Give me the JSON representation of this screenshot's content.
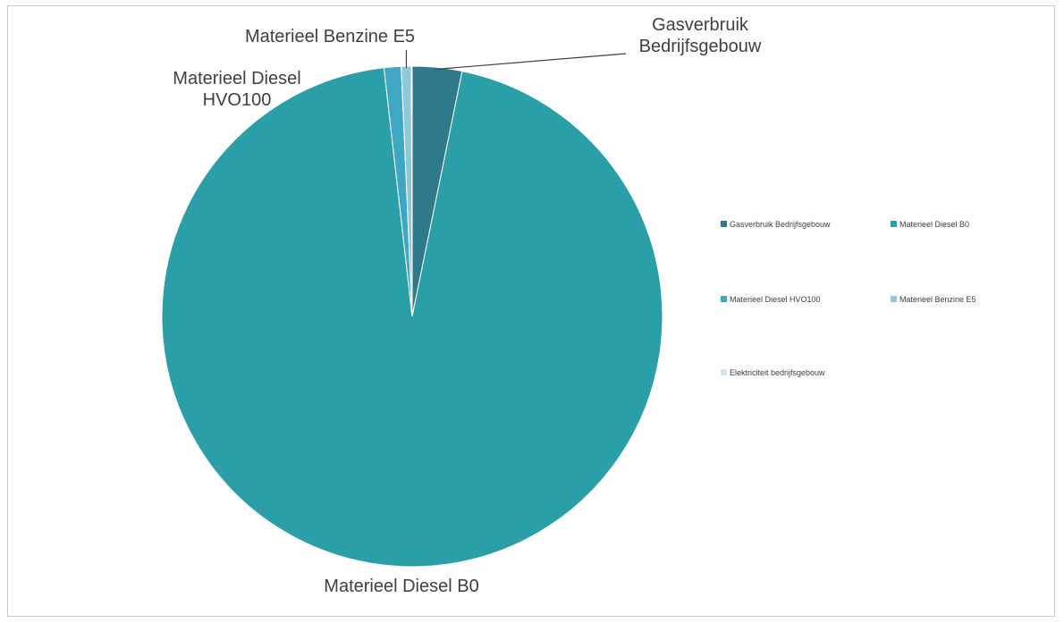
{
  "chart_data": {
    "type": "pie",
    "title": "",
    "start_angle_deg": 0,
    "direction": "clockwise",
    "slices": [
      {
        "name": "Gasverbruik Bedrijfsgebouw",
        "label_lines": [
          "Gasverbruik",
          "Bedrijfsgebouw"
        ],
        "value": 3.2,
        "color": "#2e7a8c"
      },
      {
        "name": "Materieel Diesel B0",
        "label_lines": [
          "Materieel Diesel B0"
        ],
        "value": 95.0,
        "color": "#2b9fa8"
      },
      {
        "name": "Materieel Diesel HVO100",
        "label_lines": [
          "Materieel Diesel",
          "HVO100"
        ],
        "value": 1.1,
        "color": "#3fa7c3"
      },
      {
        "name": "Materieel Benzine E5",
        "label_lines": [
          "Materieel Benzine E5"
        ],
        "value": 0.65,
        "color": "#8fc9d9"
      },
      {
        "name": "Elektriciteit bedrijfsgebouw",
        "label_lines": [],
        "value": 0.05,
        "color": "#cfe6ee"
      }
    ],
    "legend": {
      "position": "right",
      "entries": [
        "Gasverbruik Bedrijfsgebouw",
        "Materieel Diesel B0",
        "Materieel Diesel HVO100",
        "Materieel Benzine E5",
        "Elektriciteit bedrijfsgebouw"
      ]
    }
  }
}
